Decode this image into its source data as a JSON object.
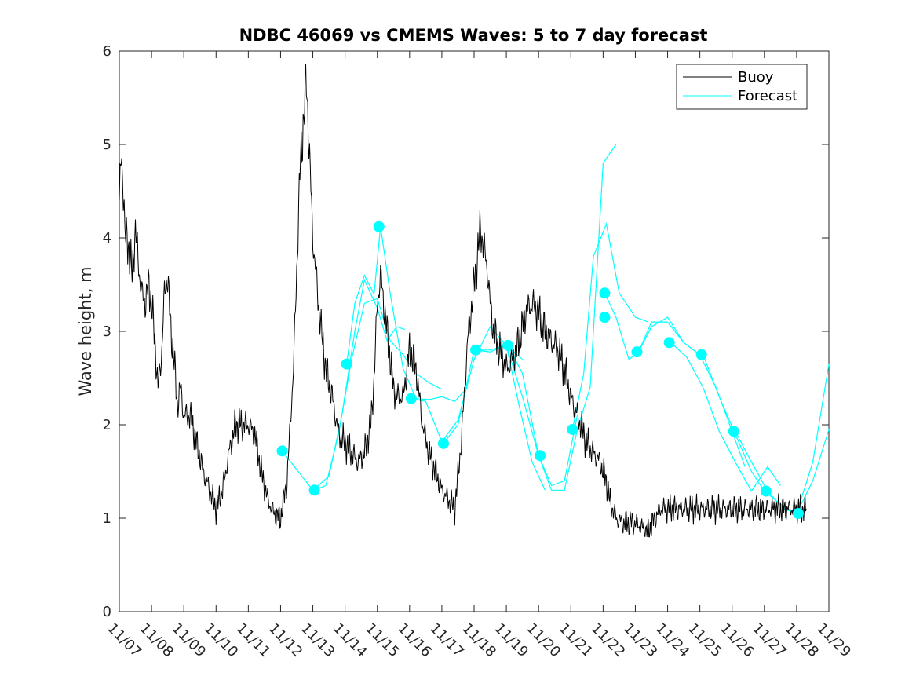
{
  "chart_data": {
    "type": "line",
    "title": "NDBC 46069 vs CMEMS Waves: 5 to 7 day forecast",
    "xlabel": "",
    "ylabel": "Wave height, m",
    "xlim": [
      0,
      22
    ],
    "ylim": [
      0,
      6
    ],
    "y_ticks": [
      "0",
      "1",
      "2",
      "3",
      "4",
      "5",
      "6"
    ],
    "x_ticks": [
      "11/07",
      "11/08",
      "11/09",
      "11/10",
      "11/11",
      "11/12",
      "11/13",
      "11/14",
      "11/15",
      "11/16",
      "11/17",
      "11/18",
      "11/19",
      "11/20",
      "11/21",
      "11/22",
      "11/23",
      "11/24",
      "11/25",
      "11/26",
      "11/27",
      "11/28",
      "11/29"
    ],
    "legend": {
      "location": "top-right",
      "entries": [
        "Buoy",
        "Forecast"
      ]
    },
    "colors": {
      "buoy": "#000000",
      "forecast": "#00ffff",
      "axis": "#262626"
    },
    "buoy_series": {
      "name": "Buoy",
      "x": [
        0,
        0.05,
        0.1,
        0.15,
        0.2,
        0.3,
        0.4,
        0.5,
        0.6,
        0.7,
        0.8,
        0.9,
        1.0,
        1.1,
        1.2,
        1.3,
        1.4,
        1.5,
        1.6,
        1.7,
        1.8,
        1.9,
        2.0,
        2.2,
        2.4,
        2.6,
        2.8,
        3.0,
        3.2,
        3.4,
        3.6,
        3.8,
        4.0,
        4.2,
        4.4,
        4.6,
        4.8,
        5.0,
        5.2,
        5.4,
        5.6,
        5.8,
        6.0,
        6.2,
        6.4,
        6.6,
        6.8,
        7.0,
        7.2,
        7.4,
        7.6,
        7.8,
        7.9,
        8.0,
        8.1,
        8.2,
        8.3,
        8.4,
        8.5,
        8.6,
        8.8,
        9.0,
        9.2,
        9.4,
        9.6,
        9.8,
        10.0,
        10.2,
        10.4,
        10.6,
        10.8,
        11.0,
        11.2,
        11.4,
        11.5,
        11.6,
        11.8,
        12.0,
        12.2,
        12.4,
        12.6,
        12.8,
        13.0,
        13.2,
        13.4,
        13.6,
        13.8,
        14.0,
        14.2,
        14.4,
        14.5,
        14.7,
        14.9,
        15.0,
        15.1,
        15.2,
        15.3,
        15.4,
        15.6,
        15.8,
        16.0,
        16.2,
        16.4,
        16.6,
        16.8,
        17.0,
        17.2,
        17.4,
        17.6,
        17.8,
        18.0,
        18.2,
        18.4,
        18.6,
        18.8,
        19.0,
        19.2,
        19.4,
        19.6,
        19.8,
        20.0,
        20.2,
        20.4,
        20.6,
        20.8,
        21.0,
        21.1,
        21.2,
        21.3
      ],
      "values": [
        4.4,
        4.9,
        4.6,
        4.3,
        4.0,
        3.9,
        3.6,
        4.1,
        3.7,
        3.4,
        3.3,
        3.5,
        3.3,
        2.9,
        2.4,
        2.7,
        3.4,
        3.6,
        3.0,
        2.7,
        2.2,
        2.4,
        2.1,
        2.1,
        1.8,
        1.5,
        1.3,
        1.1,
        1.3,
        1.7,
        2.0,
        2.0,
        2.0,
        1.9,
        1.5,
        1.2,
        1.05,
        1.0,
        1.4,
        2.6,
        4.7,
        5.7,
        4.0,
        3.2,
        2.6,
        2.3,
        1.9,
        1.8,
        1.7,
        1.6,
        1.7,
        2.0,
        2.5,
        3.3,
        3.6,
        3.3,
        3.0,
        2.7,
        2.4,
        2.3,
        2.3,
        2.8,
        2.6,
        2.0,
        1.7,
        1.5,
        1.3,
        1.2,
        1.1,
        1.8,
        2.9,
        3.5,
        4.1,
        3.7,
        3.3,
        3.0,
        2.8,
        2.6,
        2.7,
        2.9,
        3.2,
        3.3,
        3.2,
        3.0,
        2.9,
        2.8,
        2.6,
        2.3,
        2.1,
        1.9,
        1.8,
        1.7,
        1.6,
        1.5,
        1.4,
        1.2,
        1.1,
        1.0,
        0.95,
        0.95,
        0.95,
        0.9,
        0.85,
        1.0,
        1.1,
        1.1,
        1.1,
        1.1,
        1.1,
        1.1,
        1.1,
        1.1,
        1.1,
        1.1,
        1.1,
        1.1,
        1.1,
        1.1,
        1.1,
        1.1,
        1.1,
        1.1,
        1.1,
        1.1,
        1.1,
        1.1,
        1.1,
        1.1,
        1.1
      ]
    },
    "forecast_segments": [
      {
        "x": [
          5.05,
          5.5,
          6.0,
          6.5,
          6.9,
          7.3,
          7.6,
          8.0,
          8.3,
          8.6,
          8.85
        ],
        "values": [
          1.72,
          1.52,
          1.3,
          1.45,
          2.1,
          3.0,
          3.55,
          3.25,
          2.9,
          3.05,
          3.02
        ]
      },
      {
        "x": [
          6.05,
          6.4,
          6.8,
          7.2,
          7.6,
          8.0,
          8.4,
          8.8,
          9.2,
          9.6,
          10.0
        ],
        "values": [
          1.3,
          1.35,
          1.9,
          2.7,
          3.3,
          3.35,
          2.9,
          2.75,
          2.55,
          2.45,
          2.38
        ]
      },
      {
        "x": [
          7.05,
          7.3,
          7.6,
          7.9,
          8.1,
          8.4,
          8.8,
          9.2,
          9.6,
          10.0,
          10.4,
          10.8
        ],
        "values": [
          2.65,
          3.3,
          3.6,
          3.4,
          4.12,
          3.4,
          2.6,
          2.28,
          2.27,
          2.3,
          2.25,
          2.4
        ]
      },
      {
        "x": [
          9.05,
          9.5,
          10.0,
          10.5,
          11.0,
          11.5,
          12.0,
          12.5
        ],
        "values": [
          2.28,
          2.25,
          1.82,
          2.05,
          2.7,
          3.05,
          2.85,
          2.7
        ]
      },
      {
        "x": [
          10.05,
          10.5,
          11.0,
          11.5,
          12.0,
          12.4,
          12.8,
          13.2
        ],
        "values": [
          1.8,
          2.0,
          2.8,
          2.78,
          2.85,
          2.2,
          1.6,
          1.3
        ]
      },
      {
        "x": [
          11.1,
          11.5,
          12.0,
          12.5,
          13.0,
          13.4,
          13.8,
          14.2
        ],
        "values": [
          2.8,
          2.8,
          2.85,
          2.3,
          1.67,
          1.35,
          1.4,
          2.1
        ]
      },
      {
        "x": [
          12.05,
          12.5,
          13.0,
          13.4,
          13.8,
          14.2,
          14.6,
          15.0,
          15.4
        ],
        "values": [
          2.85,
          2.55,
          1.67,
          1.3,
          1.3,
          1.95,
          2.4,
          4.8,
          5.0
        ]
      },
      {
        "x": [
          14.05,
          14.4,
          14.7,
          15.1,
          15.5,
          16.0,
          16.4
        ],
        "values": [
          1.95,
          2.55,
          3.8,
          4.15,
          3.41,
          3.15,
          3.1
        ]
      },
      {
        "x": [
          15.05,
          15.4,
          15.8,
          16.1,
          16.5,
          17.0,
          17.5,
          18.0
        ],
        "values": [
          3.41,
          3.15,
          2.7,
          2.78,
          3.1,
          3.1,
          2.88,
          2.75
        ]
      },
      {
        "x": [
          16.1,
          16.5,
          17.0,
          17.5,
          18.0,
          18.5,
          19.0,
          19.4
        ],
        "values": [
          2.78,
          3.05,
          3.15,
          2.88,
          2.75,
          2.4,
          1.93,
          1.55
        ]
      },
      {
        "x": [
          17.1,
          17.6,
          18.1,
          18.6,
          19.1,
          19.6,
          20.1,
          20.5
        ],
        "values": [
          2.88,
          2.72,
          2.4,
          1.93,
          1.6,
          1.29,
          1.55,
          1.35
        ]
      },
      {
        "x": [
          18.1,
          18.6,
          19.1,
          19.6,
          20.0,
          20.5,
          21.0,
          21.5,
          22.0
        ],
        "values": [
          2.75,
          2.3,
          1.9,
          1.5,
          1.29,
          1.15,
          1.05,
          1.6,
          2.65
        ]
      },
      {
        "x": [
          19.1,
          19.6,
          20.1,
          20.6,
          21.0,
          21.5,
          22.0
        ],
        "values": [
          1.93,
          1.6,
          1.29,
          1.1,
          1.05,
          1.4,
          1.95
        ]
      }
    ],
    "forecast_markers": {
      "x": [
        5.05,
        6.05,
        7.05,
        8.05,
        9.05,
        10.05,
        11.05,
        12.05,
        13.05,
        14.05,
        15.05,
        15.05,
        16.05,
        17.05,
        18.05,
        19.05,
        20.05,
        21.05
      ],
      "values": [
        1.72,
        1.3,
        2.65,
        4.12,
        2.28,
        1.8,
        2.8,
        2.85,
        1.67,
        1.95,
        3.41,
        3.15,
        2.78,
        2.88,
        2.75,
        1.93,
        1.29,
        1.05
      ]
    }
  }
}
